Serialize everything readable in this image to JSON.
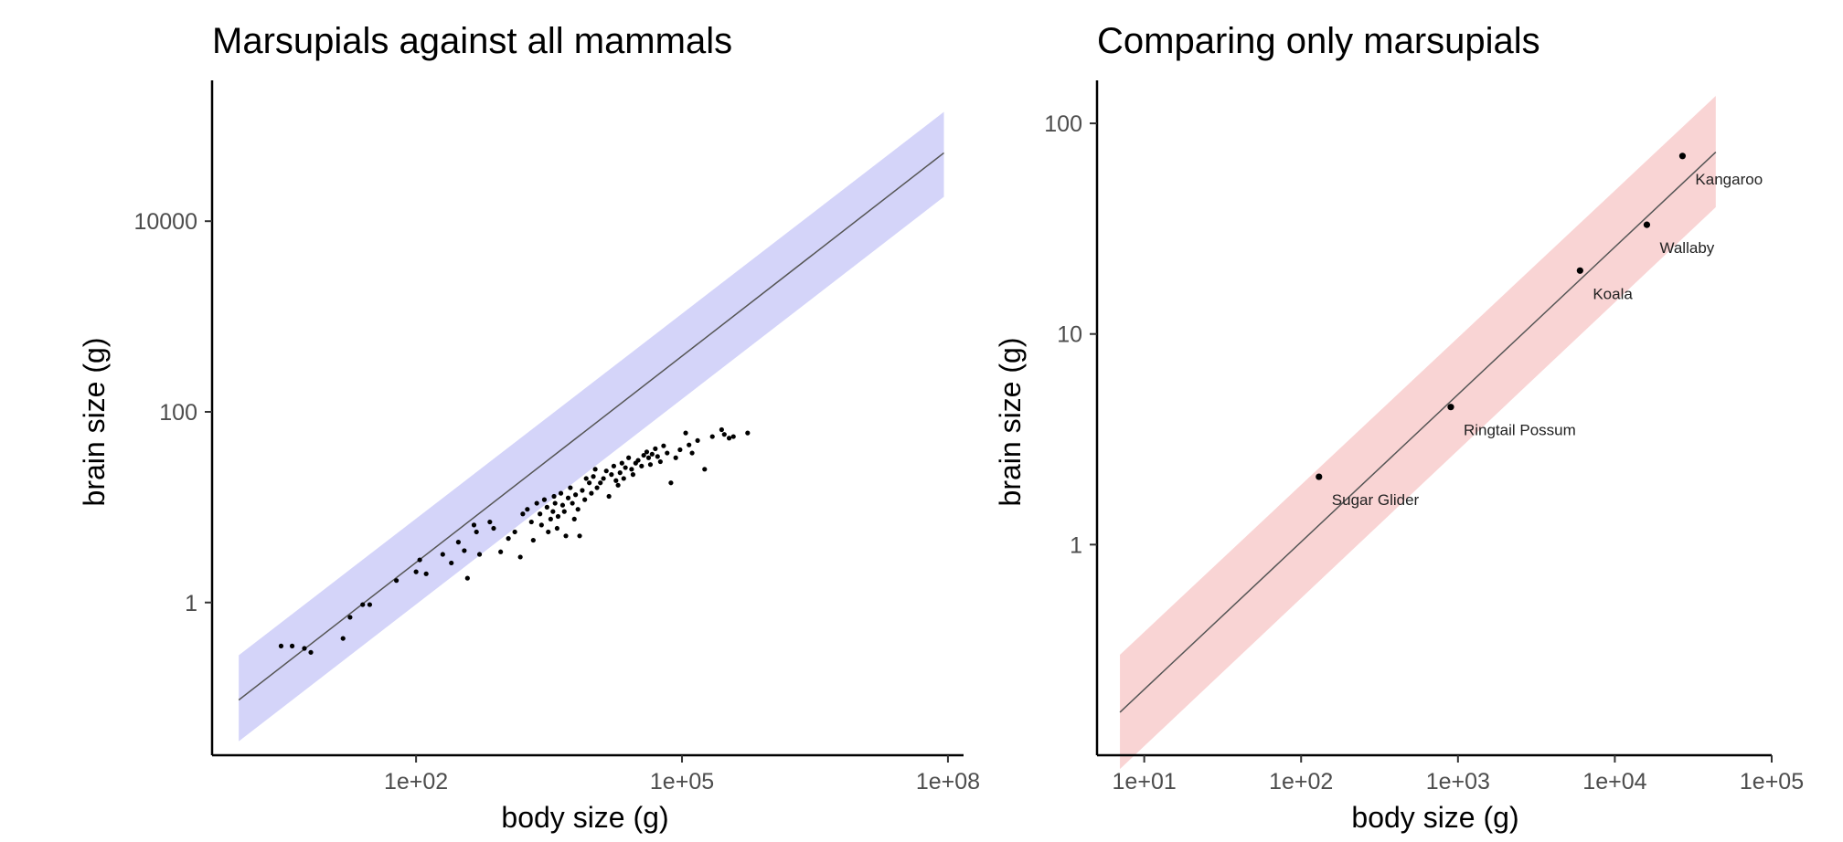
{
  "chart_data": [
    {
      "type": "scatter",
      "title": "Marsupials against all mammals",
      "xlabel": "body size (g)",
      "ylabel": "brain size (g)",
      "x_scale": "log",
      "y_scale": "log",
      "xlim": [
        0.5,
        150000000.0
      ],
      "ylim": [
        0.025,
        300000
      ],
      "x_ticks": [
        100,
        100000,
        100000000
      ],
      "x_tick_labels": [
        "1e+02",
        "1e+05",
        "1e+08"
      ],
      "y_ticks": [
        1,
        100,
        10000
      ],
      "y_tick_labels": [
        "1",
        "100",
        "10000"
      ],
      "band_color": "#d4d4f9",
      "grid": false,
      "fit": {
        "x": [
          1,
          90000000
        ],
        "y": [
          0.095,
          52000
        ],
        "lower": [
          0.035,
          18000
        ],
        "upper": [
          0.28,
          140000
        ]
      },
      "points": [
        {
          "x": 3.0,
          "y": 0.35
        },
        {
          "x": 4.0,
          "y": 0.35
        },
        {
          "x": 5.5,
          "y": 0.33
        },
        {
          "x": 6.5,
          "y": 0.3
        },
        {
          "x": 15,
          "y": 0.42
        },
        {
          "x": 18,
          "y": 0.7
        },
        {
          "x": 25,
          "y": 0.95
        },
        {
          "x": 30,
          "y": 0.95
        },
        {
          "x": 60,
          "y": 1.7
        },
        {
          "x": 100,
          "y": 2.1
        },
        {
          "x": 110,
          "y": 2.8
        },
        {
          "x": 130,
          "y": 2.0
        },
        {
          "x": 200,
          "y": 3.2
        },
        {
          "x": 250,
          "y": 2.6
        },
        {
          "x": 300,
          "y": 4.3
        },
        {
          "x": 350,
          "y": 3.5
        },
        {
          "x": 380,
          "y": 1.8
        },
        {
          "x": 450,
          "y": 6.5
        },
        {
          "x": 480,
          "y": 5.5
        },
        {
          "x": 520,
          "y": 3.2
        },
        {
          "x": 680,
          "y": 7.0
        },
        {
          "x": 750,
          "y": 6.0
        },
        {
          "x": 900,
          "y": 3.4
        },
        {
          "x": 1100,
          "y": 4.7
        },
        {
          "x": 1300,
          "y": 5.5
        },
        {
          "x": 1500,
          "y": 3.0
        },
        {
          "x": 1600,
          "y": 8.5
        },
        {
          "x": 1800,
          "y": 9.5
        },
        {
          "x": 2000,
          "y": 7.0
        },
        {
          "x": 2100,
          "y": 4.5
        },
        {
          "x": 2300,
          "y": 11
        },
        {
          "x": 2500,
          "y": 8.5
        },
        {
          "x": 2600,
          "y": 6.5
        },
        {
          "x": 2800,
          "y": 12
        },
        {
          "x": 3000,
          "y": 10
        },
        {
          "x": 3100,
          "y": 5.5
        },
        {
          "x": 3300,
          "y": 7.5
        },
        {
          "x": 3500,
          "y": 9.0
        },
        {
          "x": 3600,
          "y": 13
        },
        {
          "x": 3700,
          "y": 11
        },
        {
          "x": 3900,
          "y": 6.0
        },
        {
          "x": 4000,
          "y": 8.0
        },
        {
          "x": 4300,
          "y": 14
        },
        {
          "x": 4500,
          "y": 10.5
        },
        {
          "x": 4700,
          "y": 9.0
        },
        {
          "x": 4900,
          "y": 5.0
        },
        {
          "x": 5200,
          "y": 12.5
        },
        {
          "x": 5500,
          "y": 16
        },
        {
          "x": 5800,
          "y": 11
        },
        {
          "x": 6100,
          "y": 7.5
        },
        {
          "x": 6300,
          "y": 13.5
        },
        {
          "x": 6700,
          "y": 9.5
        },
        {
          "x": 7000,
          "y": 5.0
        },
        {
          "x": 7500,
          "y": 15
        },
        {
          "x": 8000,
          "y": 12
        },
        {
          "x": 8300,
          "y": 20
        },
        {
          "x": 9000,
          "y": 18
        },
        {
          "x": 9500,
          "y": 14
        },
        {
          "x": 10000,
          "y": 21
        },
        {
          "x": 10500,
          "y": 25
        },
        {
          "x": 11000,
          "y": 16
        },
        {
          "x": 12000,
          "y": 18
        },
        {
          "x": 13000,
          "y": 20
        },
        {
          "x": 14000,
          "y": 24
        },
        {
          "x": 15000,
          "y": 13
        },
        {
          "x": 16000,
          "y": 22
        },
        {
          "x": 17000,
          "y": 27
        },
        {
          "x": 18000,
          "y": 19
        },
        {
          "x": 19000,
          "y": 17
        },
        {
          "x": 20000,
          "y": 23
        },
        {
          "x": 21000,
          "y": 29
        },
        {
          "x": 22000,
          "y": 20
        },
        {
          "x": 23000,
          "y": 26
        },
        {
          "x": 25000,
          "y": 33
        },
        {
          "x": 27000,
          "y": 25
        },
        {
          "x": 28000,
          "y": 22
        },
        {
          "x": 30000,
          "y": 29
        },
        {
          "x": 32000,
          "y": 31
        },
        {
          "x": 35000,
          "y": 27
        },
        {
          "x": 37000,
          "y": 35
        },
        {
          "x": 40000,
          "y": 38
        },
        {
          "x": 42000,
          "y": 33
        },
        {
          "x": 44000,
          "y": 28
        },
        {
          "x": 46000,
          "y": 36
        },
        {
          "x": 50000,
          "y": 41
        },
        {
          "x": 53000,
          "y": 34
        },
        {
          "x": 57000,
          "y": 30
        },
        {
          "x": 62000,
          "y": 44
        },
        {
          "x": 68000,
          "y": 37
        },
        {
          "x": 75000,
          "y": 18
        },
        {
          "x": 85000,
          "y": 33
        },
        {
          "x": 95000,
          "y": 40
        },
        {
          "x": 110000,
          "y": 60
        },
        {
          "x": 120000,
          "y": 45
        },
        {
          "x": 130000,
          "y": 37
        },
        {
          "x": 150000,
          "y": 50
        },
        {
          "x": 180000,
          "y": 25
        },
        {
          "x": 220000,
          "y": 55
        },
        {
          "x": 280000,
          "y": 65
        },
        {
          "x": 300000,
          "y": 58
        },
        {
          "x": 340000,
          "y": 53
        },
        {
          "x": 380000,
          "y": 55
        },
        {
          "x": 550000,
          "y": 60
        }
      ]
    },
    {
      "type": "scatter",
      "title": "Comparing only marsupials",
      "xlabel": "body size (g)",
      "ylabel": "brain size (g)",
      "x_scale": "log",
      "y_scale": "log",
      "xlim": [
        5,
        100000
      ],
      "ylim": [
        0.1,
        160
      ],
      "x_ticks": [
        10,
        100,
        1000,
        10000,
        100000
      ],
      "x_tick_labels": [
        "1e+01",
        "1e+02",
        "1e+03",
        "1e+04",
        "1e+05"
      ],
      "y_ticks": [
        1,
        10,
        100
      ],
      "y_tick_labels": [
        "1",
        "10",
        "100"
      ],
      "band_color": "#f9d4d4",
      "grid": false,
      "fit": {
        "x": [
          7,
          44000
        ],
        "y": [
          0.16,
          73
        ],
        "lower": [
          0.086,
          40
        ],
        "upper": [
          0.3,
          135
        ]
      },
      "points": [
        {
          "x": 130,
          "y": 2.1,
          "label": "Sugar Glider"
        },
        {
          "x": 900,
          "y": 4.5,
          "label": "Ringtail Possum"
        },
        {
          "x": 6000,
          "y": 20,
          "label": "Koala"
        },
        {
          "x": 16000,
          "y": 33,
          "label": "Wallaby"
        },
        {
          "x": 27000,
          "y": 70,
          "label": "Kangaroo"
        }
      ]
    }
  ]
}
